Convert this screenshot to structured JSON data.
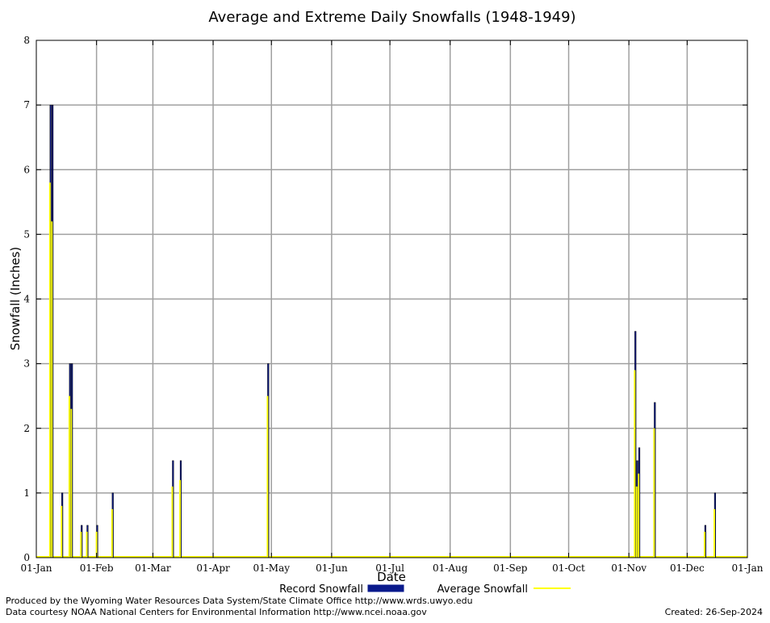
{
  "chart_data": {
    "type": "bar",
    "title": "Average and Extreme Daily Snowfalls (1948-1949)",
    "xlabel": "Date",
    "ylabel": "Snowfall (Inches)",
    "ylim": [
      0,
      8
    ],
    "xlim": [
      "1948-01-01",
      "1949-01-01"
    ],
    "grid": true,
    "legend_position": "bottom",
    "y_ticks": [
      "0",
      "1",
      "2",
      "3",
      "4",
      "5",
      "6",
      "7",
      "8"
    ],
    "x_ticks": [
      {
        "date": "1948-01-01",
        "label": "01-Jan"
      },
      {
        "date": "1948-02-01",
        "label": "01-Feb"
      },
      {
        "date": "1948-03-01",
        "label": "01-Mar"
      },
      {
        "date": "1948-04-01",
        "label": "01-Apr"
      },
      {
        "date": "1948-05-01",
        "label": "01-May"
      },
      {
        "date": "1948-06-01",
        "label": "01-Jun"
      },
      {
        "date": "1948-07-01",
        "label": "01-Jul"
      },
      {
        "date": "1948-08-01",
        "label": "01-Aug"
      },
      {
        "date": "1948-09-01",
        "label": "01-Sep"
      },
      {
        "date": "1948-10-01",
        "label": "01-Oct"
      },
      {
        "date": "1948-11-01",
        "label": "01-Nov"
      },
      {
        "date": "1948-12-01",
        "label": "01-Dec"
      },
      {
        "date": "1949-01-01",
        "label": "01-Jan"
      }
    ],
    "series": [
      {
        "name": "Record Snowfall",
        "color": "#0a1a8c",
        "points": [
          {
            "date": "1948-01-08",
            "value": 7.0
          },
          {
            "date": "1948-01-09",
            "value": 7.0
          },
          {
            "date": "1948-01-14",
            "value": 1.0
          },
          {
            "date": "1948-01-18",
            "value": 3.0
          },
          {
            "date": "1948-01-19",
            "value": 3.0
          },
          {
            "date": "1948-01-24",
            "value": 0.5
          },
          {
            "date": "1948-01-27",
            "value": 0.5
          },
          {
            "date": "1948-02-01",
            "value": 0.5
          },
          {
            "date": "1948-02-09",
            "value": 1.0
          },
          {
            "date": "1948-03-11",
            "value": 1.5
          },
          {
            "date": "1948-03-15",
            "value": 1.5
          },
          {
            "date": "1948-04-29",
            "value": 3.0
          },
          {
            "date": "1948-11-04",
            "value": 3.5
          },
          {
            "date": "1948-11-05",
            "value": 1.5
          },
          {
            "date": "1948-11-06",
            "value": 1.7
          },
          {
            "date": "1948-11-14",
            "value": 2.4
          },
          {
            "date": "1948-12-10",
            "value": 0.5
          },
          {
            "date": "1948-12-15",
            "value": 1.0
          }
        ]
      },
      {
        "name": "Average Snowfall",
        "color": "#ffff00",
        "points": [
          {
            "date": "1948-01-08",
            "value": 5.8
          },
          {
            "date": "1948-01-09",
            "value": 5.2
          },
          {
            "date": "1948-01-14",
            "value": 0.8
          },
          {
            "date": "1948-01-18",
            "value": 2.5
          },
          {
            "date": "1948-01-19",
            "value": 2.3
          },
          {
            "date": "1948-01-24",
            "value": 0.4
          },
          {
            "date": "1948-01-27",
            "value": 0.4
          },
          {
            "date": "1948-02-01",
            "value": 0.4
          },
          {
            "date": "1948-02-09",
            "value": 0.75
          },
          {
            "date": "1948-03-11",
            "value": 1.1
          },
          {
            "date": "1948-03-15",
            "value": 1.2
          },
          {
            "date": "1948-04-29",
            "value": 2.5
          },
          {
            "date": "1948-11-04",
            "value": 2.9
          },
          {
            "date": "1948-11-05",
            "value": 1.1
          },
          {
            "date": "1948-11-06",
            "value": 1.3
          },
          {
            "date": "1948-11-14",
            "value": 2.0
          },
          {
            "date": "1948-12-10",
            "value": 0.4
          },
          {
            "date": "1948-12-15",
            "value": 0.75
          }
        ]
      }
    ]
  },
  "footer": {
    "produced_by": "Produced by the Wyoming Water Resources Data System/State Climate Office http://www.wrds.uwyo.edu",
    "courtesy": "Data courtesy NOAA National Centers for Environmental Information http://www.ncei.noaa.gov",
    "created": "Created:  26-Sep-2024"
  }
}
